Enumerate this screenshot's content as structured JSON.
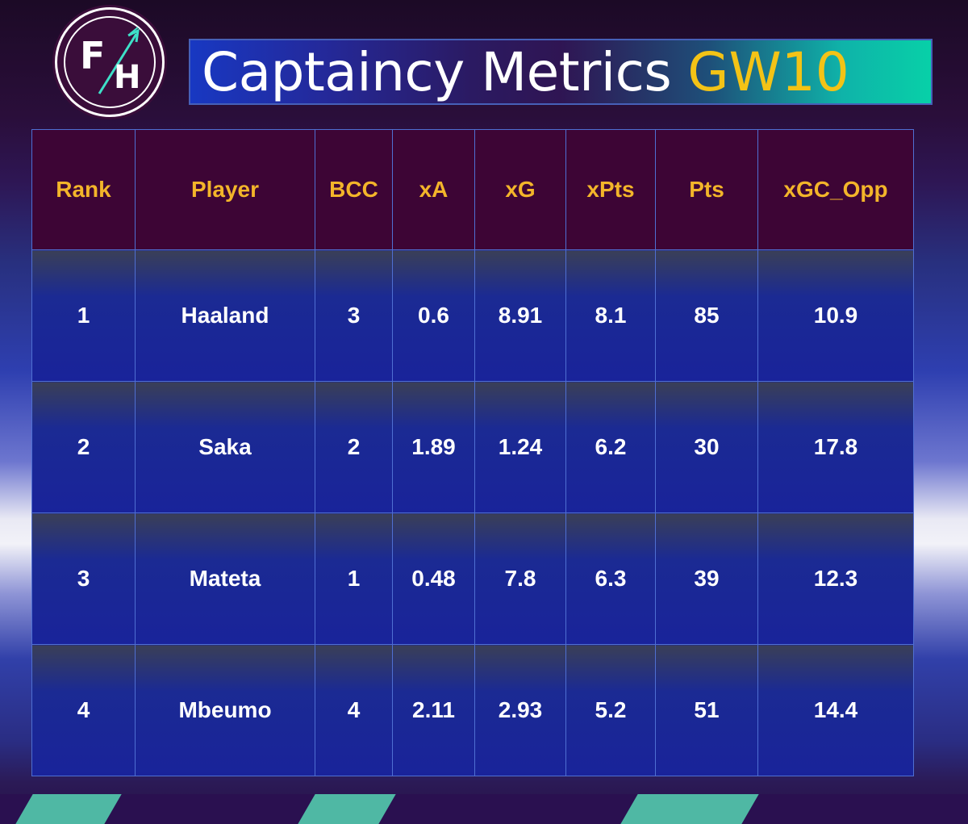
{
  "logo": {
    "letters_top": "F",
    "letters_bottom": "H"
  },
  "title": {
    "main": "Captaincy Metrics",
    "gw": "GW10"
  },
  "table": {
    "headers": [
      "Rank",
      "Player",
      "BCC",
      "xA",
      "xG",
      "xPts",
      "Pts",
      "xGC_Opp"
    ],
    "rows": [
      [
        "1",
        "Haaland",
        "3",
        "0.6",
        "8.91",
        "8.1",
        "85",
        "10.9"
      ],
      [
        "2",
        "Saka",
        "2",
        "1.89",
        "1.24",
        "6.2",
        "30",
        "17.8"
      ],
      [
        "3",
        "Mateta",
        "1",
        "0.48",
        "7.8",
        "6.3",
        "39",
        "12.3"
      ],
      [
        "4",
        "Mbeumo",
        "4",
        "2.11",
        "2.93",
        "5.2",
        "51",
        "14.4"
      ]
    ]
  },
  "colors": {
    "header_bg": "#3d0535",
    "header_text": "#f3b52a",
    "accent": "#f3c316",
    "cell_bg": "#19239a"
  }
}
